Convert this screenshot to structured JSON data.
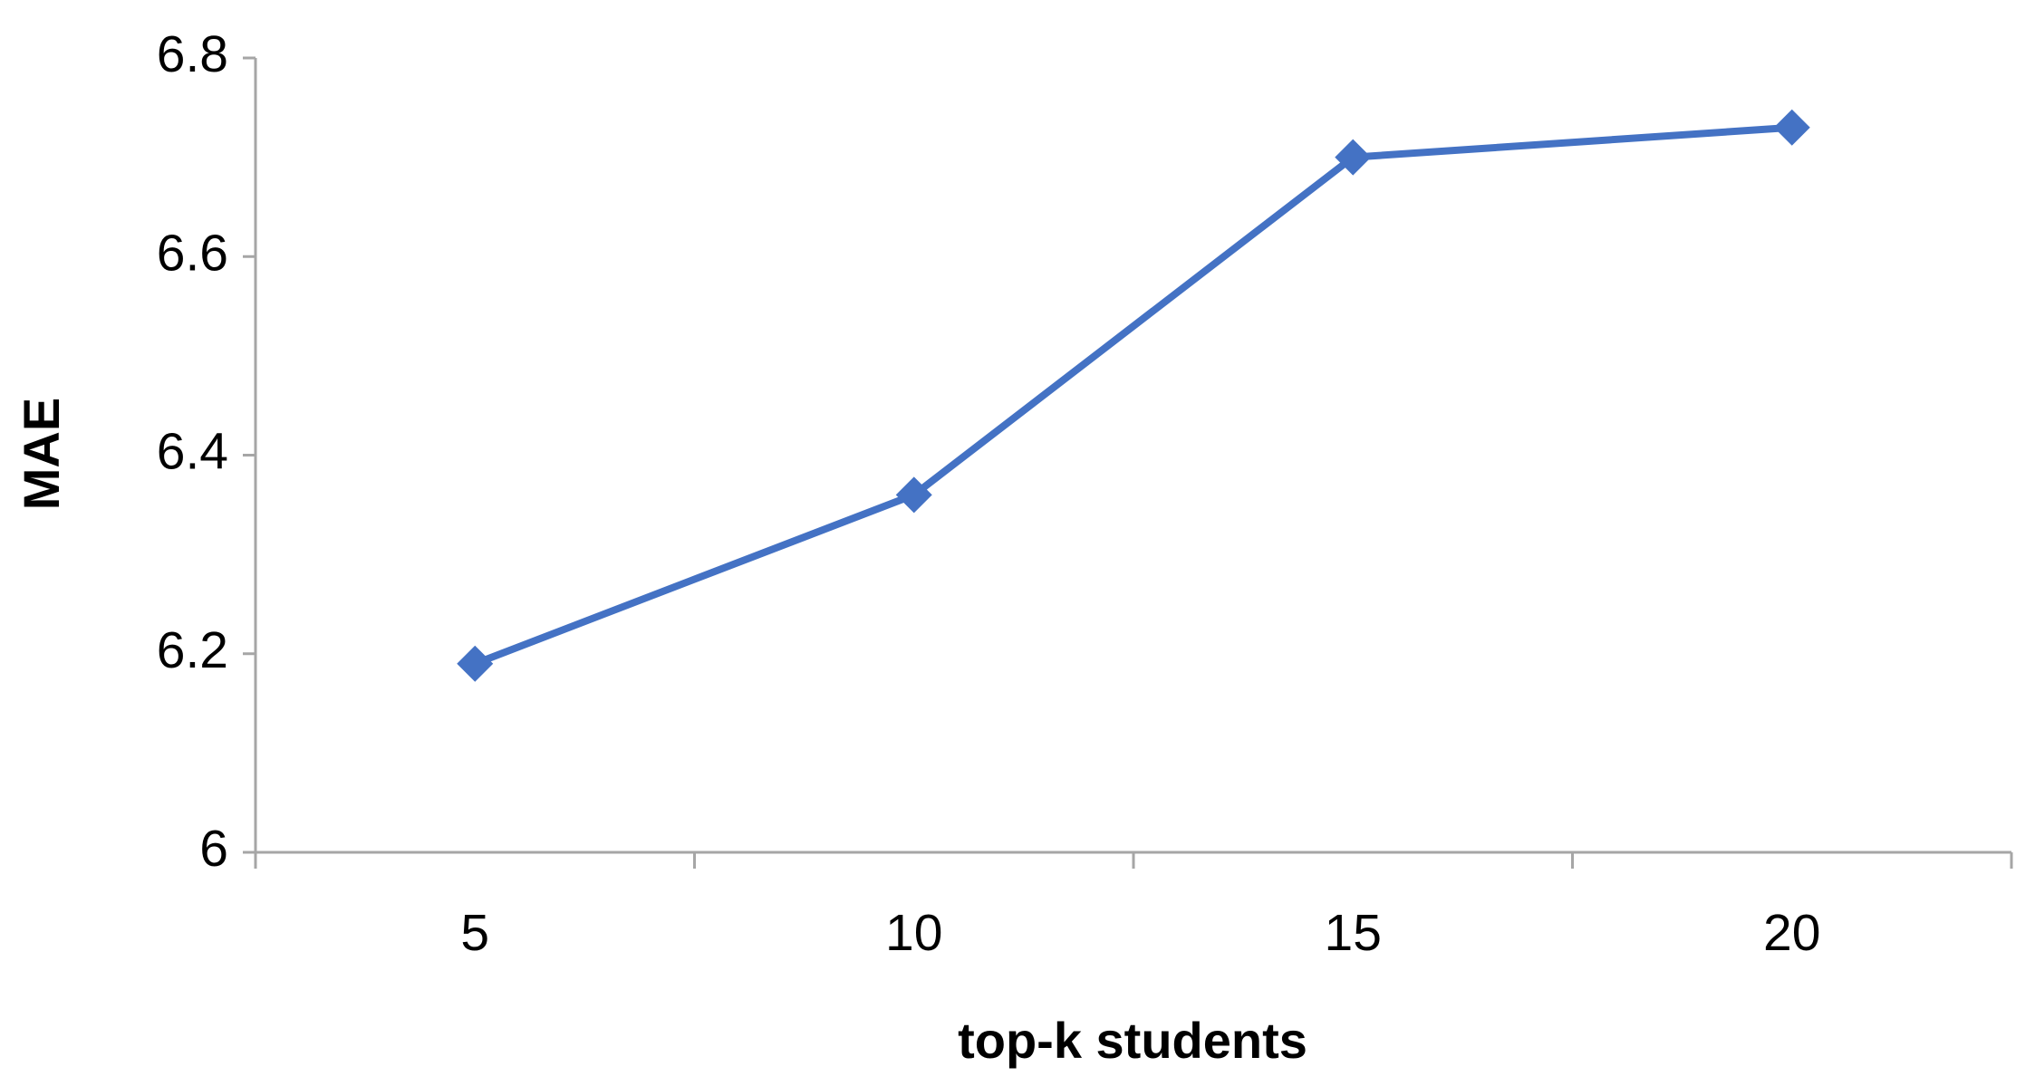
{
  "chart_data": {
    "type": "line",
    "x_label": "top-k students",
    "y_label": "MAE",
    "categories": [
      "5",
      "10",
      "15",
      "20"
    ],
    "series": [
      {
        "name": "MAE",
        "color": "#4472c4",
        "values": [
          6.19,
          6.36,
          6.7,
          6.73
        ]
      }
    ],
    "ylim": [
      6,
      6.8
    ],
    "yticks": [
      6,
      6.2,
      6.4,
      6.6,
      6.8
    ],
    "grid": false
  }
}
